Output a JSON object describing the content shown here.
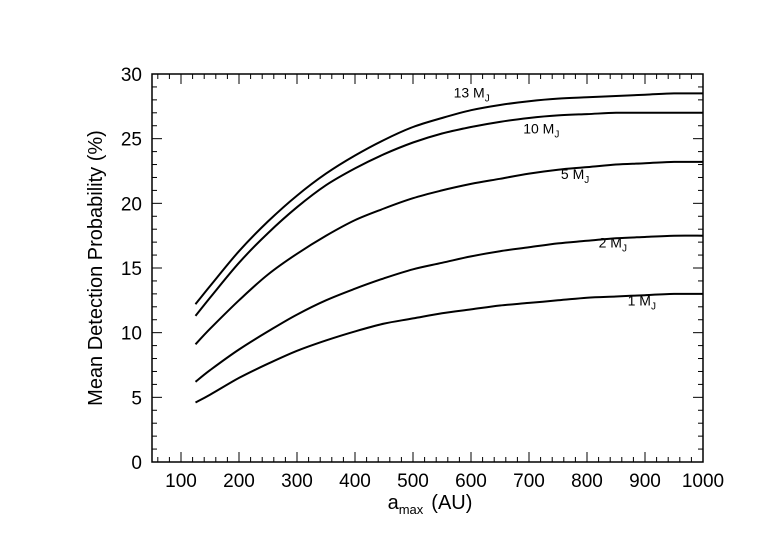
{
  "chart_data": {
    "type": "line",
    "title": "",
    "xlabel": {
      "main": "a",
      "sub": "max",
      "unit": "(AU)"
    },
    "ylabel": "Mean Detection Probability (%)",
    "xlim": [
      50,
      1000
    ],
    "ylim": [
      0,
      30
    ],
    "x_ticks": [
      100,
      200,
      300,
      400,
      500,
      600,
      700,
      800,
      900,
      1000
    ],
    "y_ticks": [
      0,
      5,
      10,
      15,
      20,
      25,
      30
    ],
    "x_minor_step": 20,
    "y_minor_step": 1,
    "grid": false,
    "series": [
      {
        "name": "13 MJ",
        "label_main": "13 M",
        "label_sub": "J",
        "label_at": [
          570,
          28.2
        ],
        "x": [
          125,
          150,
          200,
          250,
          300,
          350,
          400,
          450,
          500,
          550,
          600,
          650,
          700,
          750,
          800,
          850,
          900,
          950,
          1000
        ],
        "values": [
          12.2,
          13.6,
          16.3,
          18.6,
          20.6,
          22.3,
          23.7,
          24.9,
          25.9,
          26.6,
          27.2,
          27.6,
          27.9,
          28.1,
          28.2,
          28.3,
          28.4,
          28.5,
          28.5
        ]
      },
      {
        "name": "10 MJ",
        "label_main": "10 M",
        "label_sub": "J",
        "label_at": [
          690,
          25.4
        ],
        "x": [
          125,
          150,
          200,
          250,
          300,
          350,
          400,
          450,
          500,
          550,
          600,
          650,
          700,
          750,
          800,
          850,
          900,
          950,
          1000
        ],
        "values": [
          11.3,
          12.7,
          15.4,
          17.7,
          19.7,
          21.4,
          22.7,
          23.8,
          24.7,
          25.4,
          25.9,
          26.3,
          26.6,
          26.8,
          26.9,
          27.0,
          27.0,
          27.0,
          27.0
        ]
      },
      {
        "name": "5 MJ",
        "label_main": "5 M",
        "label_sub": "J",
        "label_at": [
          755,
          21.9
        ],
        "x": [
          125,
          150,
          200,
          250,
          300,
          350,
          400,
          450,
          500,
          550,
          600,
          650,
          700,
          750,
          800,
          850,
          900,
          950,
          1000
        ],
        "values": [
          9.1,
          10.3,
          12.5,
          14.5,
          16.1,
          17.5,
          18.7,
          19.6,
          20.4,
          21.0,
          21.5,
          21.9,
          22.3,
          22.6,
          22.8,
          23.0,
          23.1,
          23.2,
          23.2
        ]
      },
      {
        "name": "2 MJ",
        "label_main": "2 M",
        "label_sub": "J",
        "label_at": [
          820,
          16.6
        ],
        "x": [
          125,
          150,
          200,
          250,
          300,
          350,
          400,
          450,
          500,
          550,
          600,
          650,
          700,
          750,
          800,
          850,
          900,
          950,
          1000
        ],
        "values": [
          6.2,
          7.1,
          8.7,
          10.1,
          11.4,
          12.5,
          13.4,
          14.2,
          14.9,
          15.4,
          15.9,
          16.3,
          16.6,
          16.9,
          17.1,
          17.3,
          17.4,
          17.5,
          17.5
        ]
      },
      {
        "name": "1 MJ",
        "label_main": "1 M",
        "label_sub": "J",
        "label_at": [
          870,
          12.1
        ],
        "x": [
          125,
          150,
          200,
          250,
          300,
          350,
          400,
          450,
          500,
          550,
          600,
          650,
          700,
          750,
          800,
          850,
          900,
          950,
          1000
        ],
        "values": [
          4.6,
          5.2,
          6.5,
          7.6,
          8.6,
          9.4,
          10.1,
          10.7,
          11.1,
          11.5,
          11.8,
          12.1,
          12.3,
          12.5,
          12.7,
          12.8,
          12.9,
          13.0,
          13.0
        ]
      }
    ]
  }
}
